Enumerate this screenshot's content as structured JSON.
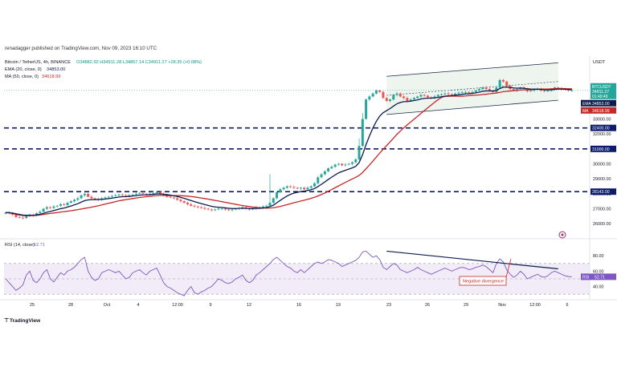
{
  "header": {
    "publisher_line": "renadagger published on TradingView.com, Nov 09, 2023 16:10 UTC",
    "symbol_line": "Bitcoin / TetherUS, 4h, BINANCE",
    "ohlc": "O34882.92  H34911.28  L34867.14  C34911.27  +28.35 (+0.08%)",
    "ema_legend": "EMA (20, close, 0)",
    "ema_value": "34853.00",
    "ma_legend": "MA (50, close, 0)",
    "ma_value": "34618.99",
    "rsi_legend": "RSI (14, close)",
    "rsi_value": "52.71",
    "brand": "TradingView"
  },
  "colors": {
    "up": "#26a69a",
    "down": "#ef5350",
    "ema": "#0d1b4f",
    "ma": "#c62828",
    "level": "#0d1b6e",
    "rsi": "#7e57c2",
    "channel": "#1a2a4a",
    "channel_fill": "#eef4ee",
    "annotation": "#c62828"
  },
  "chart_data": [
    {
      "type": "candlestick",
      "title": "Bitcoin / TetherUS, 4h, BINANCE",
      "y_unit": "USDT",
      "ylim": [
        25100,
        37200
      ],
      "y_ticks": [
        26000,
        27000,
        28000,
        29000,
        30000,
        31000,
        32000,
        33000
      ],
      "x_tick_labels": [
        "25",
        "28",
        "Oct",
        "4",
        "12:00",
        "9",
        "12",
        "16",
        "19",
        "23",
        "26",
        "29",
        "Nov",
        "12:00",
        "6"
      ],
      "price_labels": {
        "symbol": "BTCUSDT",
        "last": "34911.27",
        "countdown": "01:49:49",
        "ema_tag": "EMA",
        "ema": "34853.00",
        "ma_tag": "MA",
        "ma": "34618.99"
      },
      "support_levels": [
        {
          "label": "32400.00",
          "value": 32400
        },
        {
          "label": "31000.00",
          "value": 31000
        },
        {
          "label": "28143.00",
          "value": 28143
        }
      ],
      "ascending_channel": {
        "upper": [
          [
            111,
            35850
          ],
          [
            161,
            36750
          ]
        ],
        "lower": [
          [
            111,
            33300
          ],
          [
            161,
            34250
          ]
        ]
      },
      "close_series": [
        26750,
        26700,
        26600,
        26450,
        26400,
        26380,
        26500,
        26600,
        26550,
        26700,
        26800,
        27000,
        27100,
        27050,
        27150,
        27200,
        27300,
        27250,
        27400,
        27500,
        27600,
        27700,
        27900,
        28000,
        27800,
        27700,
        27650,
        27600,
        27700,
        27750,
        27800,
        27850,
        27900,
        27950,
        27900,
        27850,
        27900,
        27950,
        28000,
        28050,
        28000,
        27950,
        28000,
        28050,
        28100,
        28000,
        27900,
        27800,
        27750,
        27700,
        27600,
        27500,
        27400,
        27300,
        27200,
        27150,
        27100,
        27050,
        27000,
        26950,
        26900,
        26950,
        27000,
        27000,
        26950,
        26900,
        26950,
        27000,
        27050,
        27100,
        27000,
        26950,
        27000,
        27100,
        27050,
        27150,
        27200,
        27400,
        27700,
        28100,
        28300,
        28400,
        28500,
        28450,
        28400,
        28350,
        28400,
        28300,
        28400,
        28500,
        28700,
        29100,
        29300,
        29500,
        29700,
        29800,
        29950,
        30000,
        29900,
        29950,
        30000,
        30100,
        30300,
        31200,
        33000,
        34300,
        34500,
        34700,
        34900,
        34800,
        34400,
        34200,
        34300,
        34600,
        34700,
        34500,
        34400,
        34200,
        34300,
        34400,
        34500,
        34600,
        34550,
        34450,
        34400,
        34500,
        34600,
        34650,
        34700,
        34650,
        34600,
        34700,
        34750,
        34800,
        34800,
        34750,
        34800,
        34900,
        35000,
        35100,
        35000,
        34900,
        34800,
        35100,
        35600,
        35500,
        35200,
        35000,
        34900,
        35000,
        35100,
        35000,
        34850,
        34900,
        34950,
        35000,
        34900,
        34850,
        34880,
        35000,
        35100,
        35050,
        35000,
        34950,
        34900,
        34911
      ],
      "annotations": []
    },
    {
      "type": "line",
      "title": "RSI (14, close)",
      "ylim": [
        25,
        100
      ],
      "y_ticks": [
        40,
        60,
        80
      ],
      "last_value": "52.71",
      "band": [
        30,
        70
      ],
      "bearish_divergence_line": {
        "from": [
          111,
          86
        ],
        "to": [
          161,
          63
        ]
      },
      "annotation": "Negative divergence",
      "values": [
        50,
        45,
        40,
        35,
        38,
        42,
        55,
        60,
        48,
        45,
        50,
        58,
        62,
        50,
        46,
        52,
        58,
        55,
        60,
        62,
        65,
        70,
        75,
        78,
        60,
        52,
        48,
        50,
        58,
        60,
        62,
        60,
        58,
        60,
        55,
        50,
        52,
        58,
        60,
        62,
        58,
        55,
        60,
        62,
        64,
        55,
        45,
        40,
        38,
        35,
        32,
        30,
        28,
        35,
        40,
        32,
        30,
        33,
        35,
        38,
        40,
        45,
        50,
        48,
        45,
        44,
        46,
        50,
        52,
        55,
        48,
        45,
        48,
        55,
        58,
        62,
        66,
        70,
        75,
        78,
        74,
        70,
        66,
        64,
        60,
        58,
        62,
        58,
        62,
        66,
        70,
        72,
        70,
        72,
        75,
        74,
        72,
        70,
        66,
        68,
        70,
        72,
        74,
        78,
        85,
        86,
        82,
        78,
        80,
        75,
        65,
        62,
        66,
        70,
        68,
        62,
        60,
        58,
        60,
        62,
        65,
        62,
        60,
        58,
        56,
        58,
        60,
        62,
        64,
        62,
        60,
        62,
        64,
        65,
        64,
        62,
        63,
        65,
        66,
        68,
        66,
        62,
        58,
        70,
        76,
        72,
        62,
        56,
        52,
        55,
        60,
        56,
        50,
        52,
        54,
        56,
        53,
        52,
        54,
        58,
        60,
        58,
        56,
        54,
        53,
        52.71
      ]
    }
  ]
}
